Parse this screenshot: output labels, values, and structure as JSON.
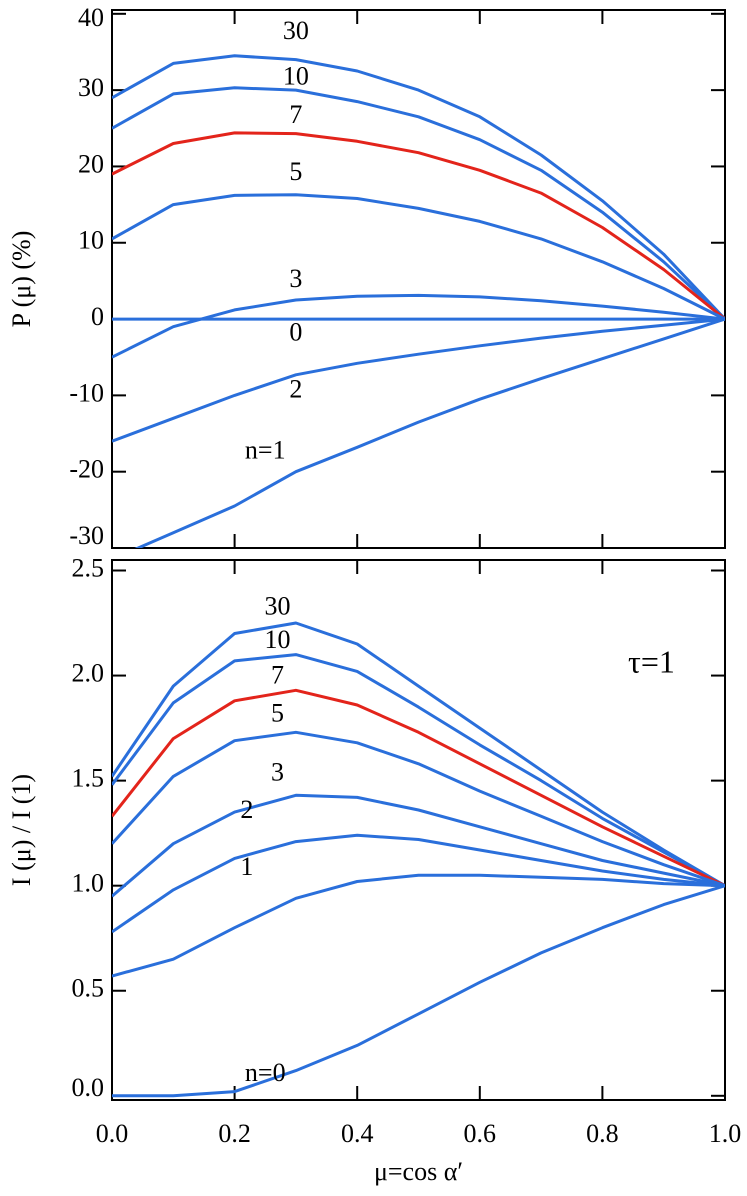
{
  "chart_data": [
    {
      "type": "line",
      "ylabel": "P (μ)  (%)",
      "x": [
        0,
        0.1,
        0.2,
        0.3,
        0.4,
        0.5,
        0.6,
        0.7,
        0.8,
        0.9,
        1.0
      ],
      "xlim": [
        0,
        1
      ],
      "xticks": [
        0,
        0.2,
        0.4,
        0.6,
        0.8,
        1
      ],
      "ylim": [
        -30,
        40.5
      ],
      "yticks": [
        -30,
        -20,
        -10,
        0,
        10,
        20,
        30,
        40
      ],
      "series": [
        {
          "name": "30",
          "color": "#2a6fdb",
          "values": [
            29,
            33.5,
            34.5,
            34,
            32.5,
            30,
            26.5,
            21.5,
            15.5,
            8.5,
            0
          ]
        },
        {
          "name": "10",
          "color": "#2a6fdb",
          "values": [
            25,
            29.5,
            30.3,
            30,
            28.5,
            26.5,
            23.5,
            19.5,
            14,
            7.5,
            0
          ]
        },
        {
          "name": "7",
          "color": "#e3241b",
          "values": [
            19,
            23,
            24.4,
            24.3,
            23.3,
            21.8,
            19.5,
            16.5,
            12,
            6.5,
            0
          ]
        },
        {
          "name": "5",
          "color": "#2a6fdb",
          "values": [
            10.5,
            15,
            16.2,
            16.3,
            15.8,
            14.5,
            12.8,
            10.5,
            7.5,
            4,
            0
          ]
        },
        {
          "name": "3",
          "color": "#2a6fdb",
          "values": [
            -5,
            -1,
            1.2,
            2.5,
            3,
            3.1,
            2.9,
            2.4,
            1.7,
            0.9,
            0
          ]
        },
        {
          "name": "0",
          "color": "#2a6fdb",
          "values": [
            0,
            0,
            0,
            0,
            0,
            0,
            0,
            0,
            0,
            0,
            0
          ]
        },
        {
          "name": "2",
          "color": "#2a6fdb",
          "values": [
            -16,
            -13,
            -10,
            -7.3,
            -5.8,
            -4.6,
            -3.5,
            -2.5,
            -1.6,
            -0.8,
            0
          ]
        },
        {
          "name": "n=1",
          "color": "#2a6fdb",
          "values": [
            -31.5,
            -28,
            -24.5,
            -20,
            -16.8,
            -13.5,
            -10.5,
            -7.8,
            -5.2,
            -2.6,
            0
          ]
        }
      ]
    },
    {
      "type": "line",
      "ylabel": "I (μ) / I (1)",
      "xlabel": "μ=cos α′",
      "annotation": "τ=1",
      "x": [
        0,
        0.1,
        0.2,
        0.3,
        0.4,
        0.5,
        0.6,
        0.7,
        0.8,
        0.9,
        1.0
      ],
      "xlim": [
        0,
        1
      ],
      "xticks": [
        {
          "value": 0,
          "label": "0.0"
        },
        0.2,
        0.4,
        0.6,
        0.8,
        {
          "value": 1,
          "label": "1.0"
        }
      ],
      "ylim": [
        -0.02,
        2.55
      ],
      "yticks": [
        {
          "value": 0,
          "label": "0.0"
        },
        0.5,
        {
          "value": 1,
          "label": "1.0"
        },
        1.5,
        {
          "value": 2,
          "label": "2.0"
        },
        2.5
      ],
      "series": [
        {
          "name": "30",
          "color": "#2a6fdb",
          "values": [
            1.52,
            1.95,
            2.2,
            2.25,
            2.15,
            1.95,
            1.75,
            1.55,
            1.35,
            1.17,
            1
          ]
        },
        {
          "name": "10",
          "color": "#2a6fdb",
          "values": [
            1.48,
            1.87,
            2.07,
            2.1,
            2.02,
            1.85,
            1.67,
            1.5,
            1.32,
            1.16,
            1
          ]
        },
        {
          "name": "7",
          "color": "#e3241b",
          "values": [
            1.33,
            1.7,
            1.88,
            1.93,
            1.86,
            1.73,
            1.58,
            1.43,
            1.28,
            1.14,
            1
          ]
        },
        {
          "name": "5",
          "color": "#2a6fdb",
          "values": [
            1.2,
            1.52,
            1.69,
            1.73,
            1.68,
            1.58,
            1.45,
            1.33,
            1.21,
            1.1,
            1
          ]
        },
        {
          "name": "3",
          "color": "#2a6fdb",
          "values": [
            0.95,
            1.2,
            1.35,
            1.43,
            1.42,
            1.36,
            1.28,
            1.2,
            1.12,
            1.06,
            1
          ]
        },
        {
          "name": "2",
          "color": "#2a6fdb",
          "values": [
            0.78,
            0.98,
            1.13,
            1.21,
            1.24,
            1.22,
            1.17,
            1.12,
            1.07,
            1.03,
            1
          ]
        },
        {
          "name": "1",
          "color": "#2a6fdb",
          "values": [
            0.57,
            0.65,
            0.8,
            0.94,
            1.02,
            1.05,
            1.05,
            1.04,
            1.03,
            1.01,
            1
          ]
        },
        {
          "name": "n=0",
          "color": "#2a6fdb",
          "values": [
            0,
            0,
            0.02,
            0.12,
            0.24,
            0.39,
            0.54,
            0.68,
            0.8,
            0.91,
            1
          ]
        }
      ]
    }
  ]
}
